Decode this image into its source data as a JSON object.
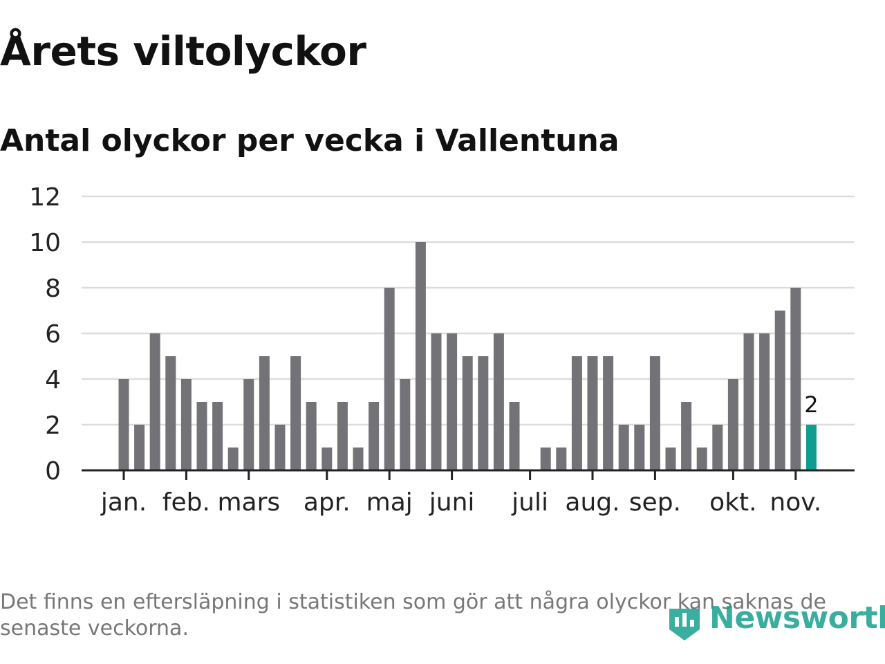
{
  "title": "Årets viltolyckor",
  "subtitle": "Antal olyckor per vecka i Vallentuna",
  "footnote": "Det finns en eftersläpning i statistiken som gör att några olyckor kan saknas de senaste veckorna.",
  "brand": "Newsworthy",
  "colors": {
    "bar": "#737277",
    "highlight": "#0e9e8f",
    "grid": "#dcdcdc",
    "axis": "#222222",
    "text": "#222222",
    "brand": "#17a08f"
  },
  "chart_data": {
    "type": "bar",
    "title": "Årets viltolyckor",
    "subtitle": "Antal olyckor per vecka i Vallentuna",
    "xlabel": "",
    "ylabel": "",
    "ylim": [
      0,
      12
    ],
    "yticks": [
      0,
      2,
      4,
      6,
      8,
      10,
      12
    ],
    "grid": true,
    "values": [
      4,
      2,
      6,
      5,
      4,
      3,
      3,
      1,
      4,
      5,
      2,
      5,
      3,
      1,
      3,
      1,
      3,
      8,
      4,
      10,
      6,
      6,
      5,
      5,
      6,
      3,
      0,
      1,
      1,
      5,
      5,
      5,
      2,
      2,
      5,
      1,
      3,
      1,
      2,
      4,
      6,
      6,
      7,
      8,
      2
    ],
    "month_labels": [
      {
        "label": "jan.",
        "week": 1
      },
      {
        "label": "feb.",
        "week": 5
      },
      {
        "label": "mars",
        "week": 9
      },
      {
        "label": "apr.",
        "week": 14
      },
      {
        "label": "maj",
        "week": 18
      },
      {
        "label": "juni",
        "week": 22
      },
      {
        "label": "juli",
        "week": 27
      },
      {
        "label": "aug.",
        "week": 31
      },
      {
        "label": "sep.",
        "week": 35
      },
      {
        "label": "okt.",
        "week": 40
      },
      {
        "label": "nov.",
        "week": 44
      }
    ],
    "highlight_index": 44,
    "highlight_label": "2"
  }
}
